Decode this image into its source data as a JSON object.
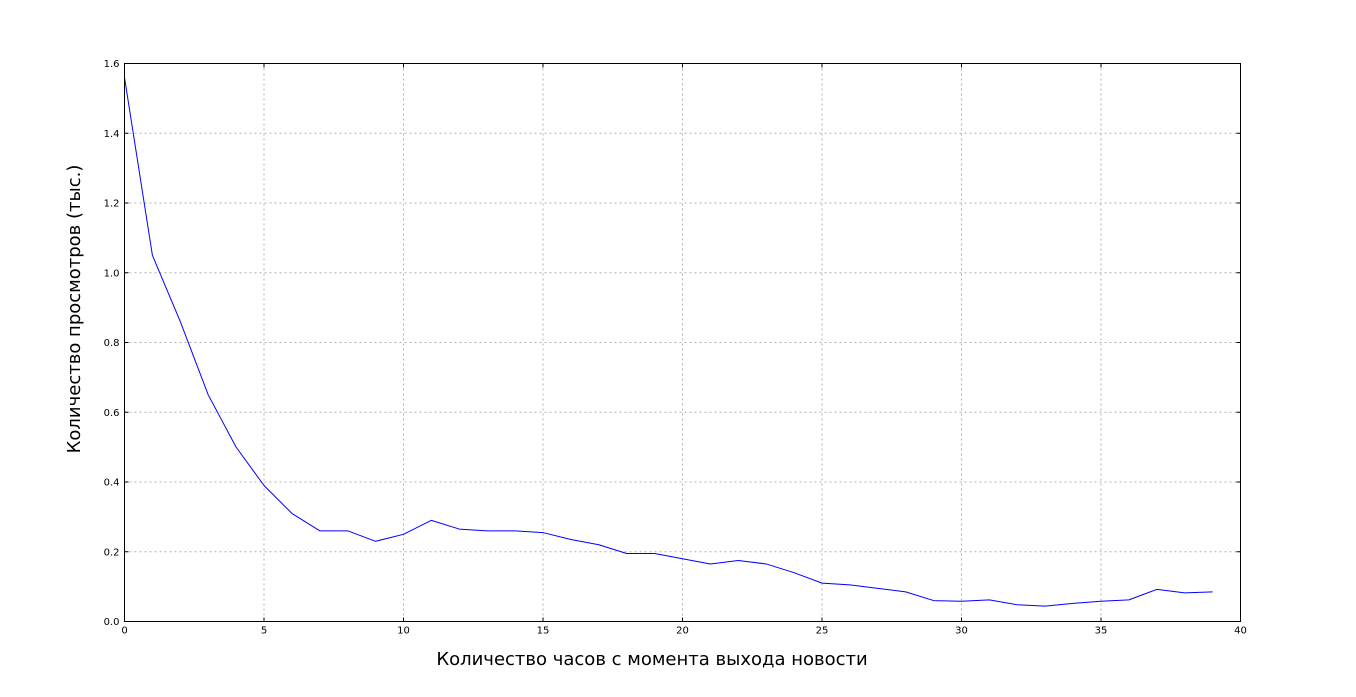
{
  "chart_data": {
    "type": "line",
    "title": "",
    "xlabel": "Количество часов с момента выхода новости",
    "ylabel": "Количество просмотров (тыс.)",
    "xlim": [
      0,
      40
    ],
    "ylim": [
      0.0,
      1.6
    ],
    "xticks": [
      0,
      5,
      10,
      15,
      20,
      25,
      30,
      35,
      40
    ],
    "xtick_labels": [
      "0",
      "5",
      "10",
      "15",
      "20",
      "25",
      "30",
      "35",
      "40"
    ],
    "yticks": [
      0.0,
      0.2,
      0.4,
      0.6,
      0.8,
      1.0,
      1.2,
      1.4,
      1.6
    ],
    "ytick_labels": [
      "0.0",
      "0.2",
      "0.4",
      "0.6",
      "0.8",
      "1.0",
      "1.2",
      "1.4",
      "1.6"
    ],
    "grid": true,
    "series": [
      {
        "color": "#0000ff",
        "x": [
          0,
          1,
          2,
          3,
          4,
          5,
          6,
          7,
          8,
          9,
          10,
          11,
          12,
          13,
          14,
          15,
          16,
          17,
          18,
          19,
          20,
          21,
          22,
          23,
          24,
          25,
          26,
          27,
          28,
          29,
          30,
          31,
          32,
          33,
          34,
          35,
          36,
          37,
          38,
          39
        ],
        "y": [
          1.56,
          1.05,
          0.86,
          0.65,
          0.5,
          0.39,
          0.31,
          0.26,
          0.26,
          0.23,
          0.25,
          0.29,
          0.265,
          0.26,
          0.26,
          0.255,
          0.235,
          0.22,
          0.195,
          0.195,
          0.18,
          0.165,
          0.175,
          0.165,
          0.14,
          0.11,
          0.105,
          0.095,
          0.085,
          0.06,
          0.058,
          0.062,
          0.048,
          0.044,
          0.052,
          0.058,
          0.062,
          0.092,
          0.082,
          0.085
        ]
      }
    ]
  }
}
